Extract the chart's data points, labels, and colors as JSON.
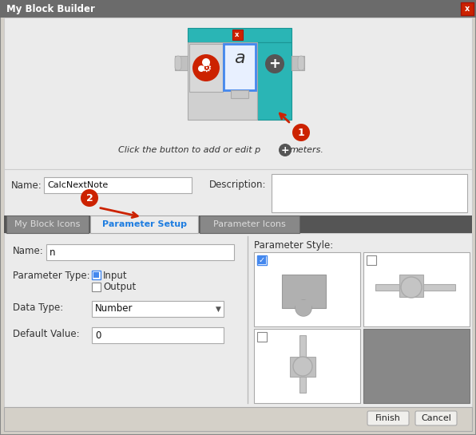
{
  "title": "My Block Builder",
  "bg_color": "#d4d0c8",
  "title_bar_color": "#6b6b6b",
  "close_btn_color": "#cc2200",
  "preview_bg": "#ebebeb",
  "form_bg": "#ebebeb",
  "tab_bar_color": "#555555",
  "panel_bg": "#ebebeb",
  "white": "#ffffff",
  "tabs": [
    "My Block Icons",
    "Parameter Setup",
    "Parameter Icons"
  ],
  "tab_active": "Parameter Setup",
  "tab_active_color": "#1e7de0",
  "block_name": "CalcNextNote",
  "param_name": "n",
  "data_type": "Number",
  "default_value": "0",
  "caption": "Click the button to add or edit p",
  "caption2": "meters.",
  "finish_btn": "Finish",
  "cancel_btn": "Cancel",
  "teal": "#2ab5b5",
  "teal_dark": "#1a9595",
  "block_gray": "#c8c8c8",
  "block_gray2": "#b8b8b8",
  "red_circle": "#cc2200",
  "dark_circle": "#555555"
}
